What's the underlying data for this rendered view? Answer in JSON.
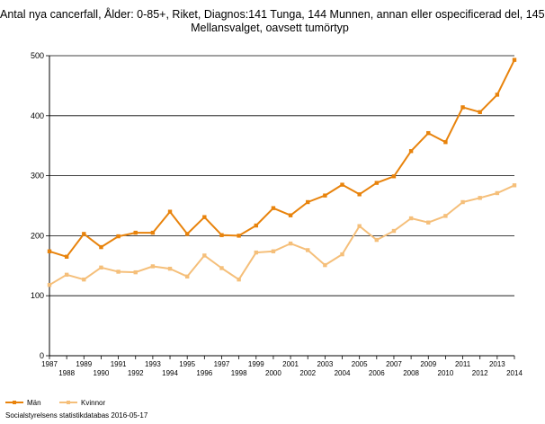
{
  "chart_data": {
    "type": "line",
    "title_line1": "Antal nya cancerfall, Ålder: 0-85+, Riket, Diagnos:141 Tunga, 144 Munnen, annan eller ospecificerad del, 145",
    "title_line2": "Mellansvalget, oavsett tumörtyp",
    "x": [
      "1987",
      "1988",
      "1989",
      "1990",
      "1991",
      "1992",
      "1993",
      "1994",
      "1995",
      "1996",
      "1997",
      "1998",
      "1999",
      "2000",
      "2001",
      "2002",
      "2003",
      "2004",
      "2005",
      "2006",
      "2007",
      "2008",
      "2009",
      "2010",
      "2011",
      "2012",
      "2013",
      "2014"
    ],
    "series": [
      {
        "name": "Män",
        "color": "#e8830c",
        "values": [
          174,
          165,
          203,
          181,
          199,
          205,
          205,
          240,
          203,
          231,
          201,
          200,
          217,
          246,
          234,
          256,
          267,
          285,
          269,
          288,
          299,
          341,
          371,
          356,
          414,
          406,
          435,
          493
        ]
      },
      {
        "name": "Kvinnor",
        "color": "#f5bf7a",
        "values": [
          118,
          135,
          127,
          147,
          140,
          139,
          149,
          145,
          132,
          167,
          146,
          127,
          172,
          174,
          187,
          176,
          151,
          169,
          216,
          193,
          208,
          229,
          222,
          233,
          256,
          263,
          271,
          284
        ]
      }
    ],
    "ylim": [
      0,
      500
    ],
    "yticks": [
      "0",
      "100",
      "200",
      "300",
      "400",
      "500"
    ],
    "grid": "horizontal",
    "legend_position": "bottom-left"
  },
  "footer": {
    "source": "Socialstyrelsens statistikdatabas 2016-05-17"
  }
}
